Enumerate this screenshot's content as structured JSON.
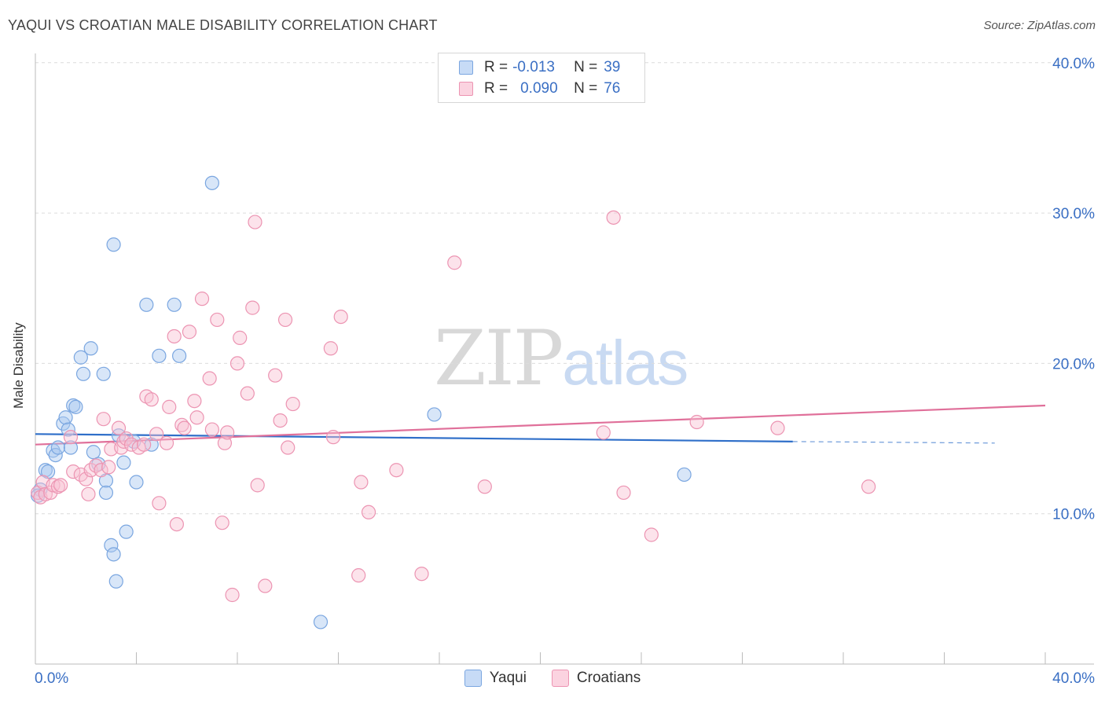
{
  "title": "YAQUI VS CROATIAN MALE DISABILITY CORRELATION CHART",
  "source": "Source: ZipAtlas.com",
  "watermark": {
    "zip": "ZIP",
    "atlas": "atlas"
  },
  "legend": {
    "rows": [
      {
        "r_label": "R =",
        "r_value": "-0.013",
        "n_label": "N =",
        "n_value": "39",
        "color": "#a8c8f0",
        "border": "#7aa6e0"
      },
      {
        "r_label": "R =",
        "r_value": "0.090",
        "n_label": "N =",
        "n_value": "76",
        "color": "#f8c0d2",
        "border": "#ec94b2"
      }
    ]
  },
  "bottom_legend": [
    {
      "name": "Yaqui",
      "color": "#a8c8f0",
      "border": "#7aa6e0"
    },
    {
      "name": "Croatians",
      "color": "#f8c0d2",
      "border": "#ec94b2"
    }
  ],
  "chart_data": {
    "type": "scatter",
    "title": "YAQUI VS CROATIAN MALE DISABILITY CORRELATION CHART",
    "xlabel": "",
    "ylabel": "Male Disability",
    "xlim": [
      0,
      40
    ],
    "ylim": [
      0,
      40
    ],
    "x_tick_labels": [
      "0.0%",
      "40.0%"
    ],
    "y_ticks": [
      10,
      20,
      30,
      40
    ],
    "y_tick_labels": [
      "10.0%",
      "20.0%",
      "30.0%",
      "40.0%"
    ],
    "grid": "horizontal dashed",
    "legend_position": "top-center",
    "series": [
      {
        "name": "Yaqui",
        "color": "#7aa6e0",
        "fill": "#a8c8f0",
        "trend": {
          "x": [
            0,
            30.0
          ],
          "y": [
            15.3,
            14.8
          ],
          "dashed_to": [
            38.0,
            14.7
          ],
          "color": "#2f6fc9"
        },
        "points": [
          [
            0.2,
            11.6
          ],
          [
            0.4,
            12.9
          ],
          [
            0.5,
            12.8
          ],
          [
            0.7,
            14.2
          ],
          [
            0.8,
            13.9
          ],
          [
            0.9,
            14.4
          ],
          [
            1.1,
            16.0
          ],
          [
            1.2,
            16.4
          ],
          [
            1.3,
            15.6
          ],
          [
            1.4,
            14.4
          ],
          [
            1.5,
            17.2
          ],
          [
            1.6,
            17.1
          ],
          [
            1.8,
            20.4
          ],
          [
            1.9,
            19.3
          ],
          [
            2.2,
            21.0
          ],
          [
            2.3,
            14.1
          ],
          [
            2.5,
            13.3
          ],
          [
            2.7,
            19.3
          ],
          [
            2.8,
            12.2
          ],
          [
            2.8,
            11.4
          ],
          [
            3.0,
            7.9
          ],
          [
            3.1,
            7.3
          ],
          [
            3.1,
            27.9
          ],
          [
            3.2,
            5.5
          ],
          [
            3.3,
            15.2
          ],
          [
            3.5,
            13.4
          ],
          [
            3.6,
            8.8
          ],
          [
            3.9,
            14.8
          ],
          [
            4.0,
            12.1
          ],
          [
            4.4,
            23.9
          ],
          [
            4.6,
            14.6
          ],
          [
            4.9,
            20.5
          ],
          [
            5.5,
            23.9
          ],
          [
            5.7,
            20.5
          ],
          [
            7.0,
            32.0
          ],
          [
            11.3,
            2.8
          ],
          [
            15.8,
            16.6
          ],
          [
            25.7,
            12.6
          ],
          [
            0.1,
            11.2
          ]
        ]
      },
      {
        "name": "Croatians",
        "color": "#ec94b2",
        "fill": "#f8c0d2",
        "trend": {
          "x": [
            0,
            40
          ],
          "y": [
            14.6,
            17.2
          ],
          "color": "#e0709a"
        },
        "points": [
          [
            0.1,
            11.4
          ],
          [
            0.2,
            11.1
          ],
          [
            0.3,
            12.1
          ],
          [
            0.4,
            11.3
          ],
          [
            0.6,
            11.4
          ],
          [
            0.7,
            11.9
          ],
          [
            0.9,
            11.8
          ],
          [
            1.0,
            11.9
          ],
          [
            1.4,
            15.1
          ],
          [
            1.5,
            12.8
          ],
          [
            1.8,
            12.6
          ],
          [
            2.0,
            12.3
          ],
          [
            2.1,
            11.3
          ],
          [
            2.2,
            12.9
          ],
          [
            2.4,
            13.2
          ],
          [
            2.6,
            12.9
          ],
          [
            2.7,
            16.3
          ],
          [
            2.9,
            13.1
          ],
          [
            3.0,
            14.3
          ],
          [
            3.3,
            15.7
          ],
          [
            3.4,
            14.4
          ],
          [
            3.5,
            14.8
          ],
          [
            3.6,
            15.0
          ],
          [
            3.8,
            14.6
          ],
          [
            4.1,
            14.4
          ],
          [
            4.3,
            14.6
          ],
          [
            4.4,
            17.8
          ],
          [
            4.6,
            17.6
          ],
          [
            4.8,
            15.3
          ],
          [
            4.9,
            10.7
          ],
          [
            5.2,
            14.7
          ],
          [
            5.3,
            17.1
          ],
          [
            5.5,
            21.8
          ],
          [
            5.6,
            9.3
          ],
          [
            5.8,
            15.9
          ],
          [
            5.9,
            15.7
          ],
          [
            6.1,
            22.1
          ],
          [
            6.3,
            17.5
          ],
          [
            6.4,
            16.4
          ],
          [
            6.6,
            24.3
          ],
          [
            6.9,
            19.0
          ],
          [
            7.0,
            15.6
          ],
          [
            7.2,
            22.9
          ],
          [
            7.4,
            9.4
          ],
          [
            7.5,
            14.7
          ],
          [
            7.6,
            15.4
          ],
          [
            7.8,
            4.6
          ],
          [
            8.0,
            20.0
          ],
          [
            8.1,
            21.7
          ],
          [
            8.4,
            18.0
          ],
          [
            8.6,
            23.7
          ],
          [
            8.7,
            29.4
          ],
          [
            8.8,
            11.9
          ],
          [
            9.1,
            5.2
          ],
          [
            9.5,
            19.2
          ],
          [
            9.7,
            16.2
          ],
          [
            9.9,
            22.9
          ],
          [
            10.0,
            14.4
          ],
          [
            10.2,
            17.3
          ],
          [
            11.7,
            21.0
          ],
          [
            11.8,
            15.1
          ],
          [
            12.1,
            23.1
          ],
          [
            12.8,
            5.9
          ],
          [
            12.9,
            12.1
          ],
          [
            13.2,
            10.1
          ],
          [
            14.3,
            12.9
          ],
          [
            15.3,
            6.0
          ],
          [
            16.6,
            26.7
          ],
          [
            17.8,
            11.8
          ],
          [
            22.5,
            15.4
          ],
          [
            23.3,
            11.4
          ],
          [
            24.4,
            8.6
          ],
          [
            22.9,
            29.7
          ],
          [
            26.2,
            16.1
          ],
          [
            29.4,
            15.7
          ],
          [
            33.0,
            11.8
          ]
        ]
      }
    ]
  }
}
